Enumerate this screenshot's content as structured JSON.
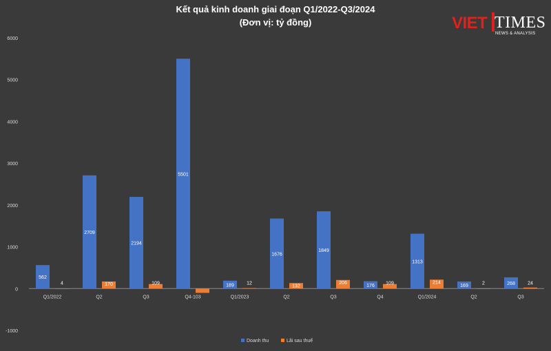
{
  "logo": {
    "brand": "VIET",
    "brand2": "TIMES",
    "tagline": "NEWS & ANALYSIS"
  },
  "chart_data": {
    "type": "bar",
    "title": "Kết quả kinh doanh giai đoạn Q1/2022-Q3/2024",
    "subtitle": "(Đơn vị: tỷ đồng)",
    "categories": [
      "Q1/2022",
      "Q2",
      "Q3",
      "Q4-103",
      "Q1/2023",
      "Q2",
      "Q3",
      "Q4",
      "Q1/2024",
      "Q2",
      "Q3"
    ],
    "series": [
      {
        "name": "Doanh thu",
        "color": "#4472c4",
        "values": [
          562,
          2709,
          2194,
          5501,
          189,
          1676,
          1849,
          176,
          1313,
          169,
          268
        ],
        "labels": [
          "562",
          "2709",
          "2194",
          "5501",
          "189",
          "1676",
          "1849",
          "176",
          "1313",
          "169",
          "268"
        ]
      },
      {
        "name": "Lãi sau thuế",
        "color": "#ed7d31",
        "values": [
          4,
          170,
          109,
          -103,
          12,
          132,
          206,
          109,
          214,
          2,
          24
        ],
        "labels": [
          "4",
          "170",
          "109",
          "",
          "12",
          "132",
          "206",
          "109",
          "214",
          "2",
          "24"
        ]
      }
    ],
    "yticks": [
      -1000,
      0,
      1000,
      2000,
      3000,
      4000,
      5000,
      6000
    ],
    "ylim": [
      -1000,
      6000
    ],
    "grid": false,
    "legend": "bottom-center"
  }
}
